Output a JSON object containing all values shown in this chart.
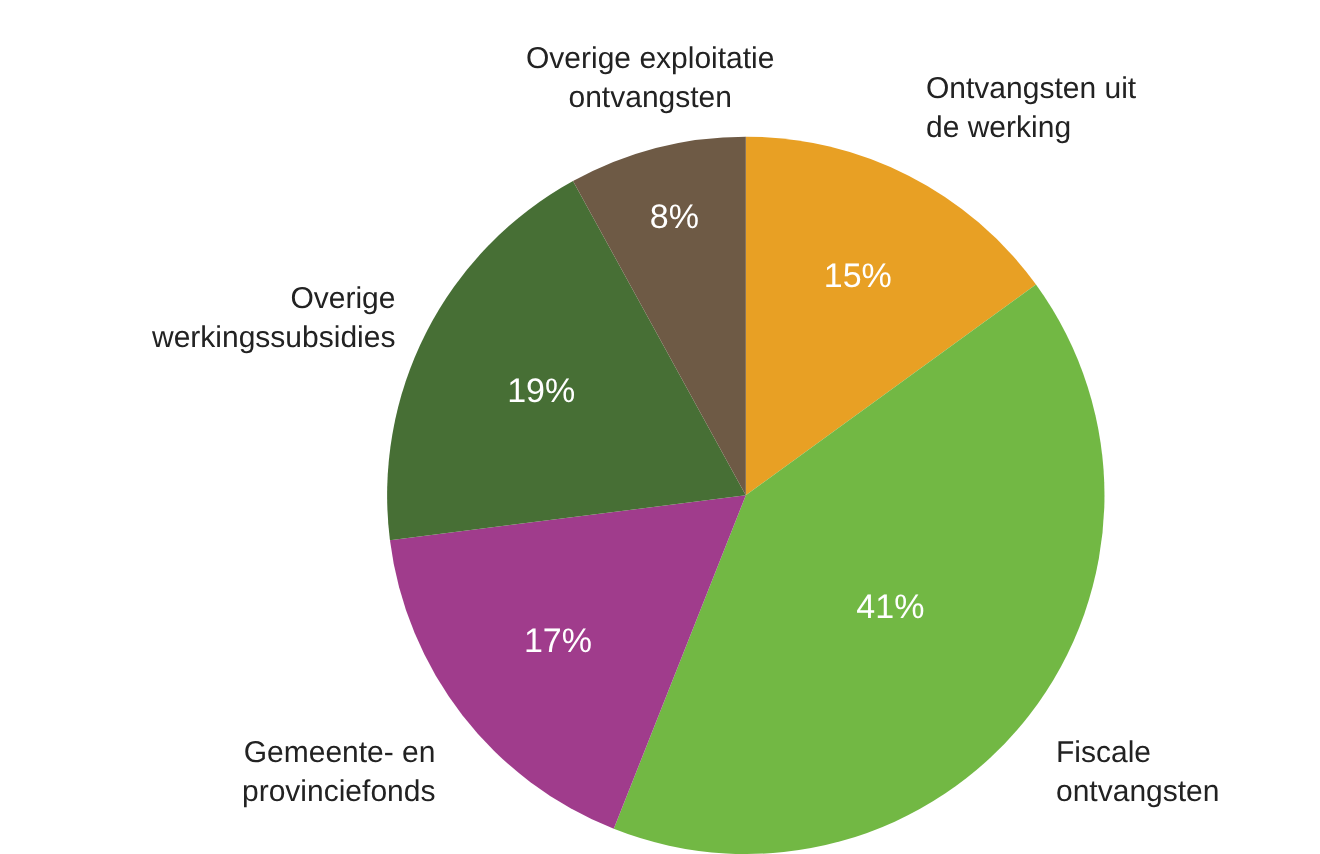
{
  "chart_data": {
    "type": "pie",
    "categories": [
      "Ontvangsten uit\nde werking",
      "Fiscale\nontvangsten",
      "Gemeente- en\nprovinciefonds",
      "Overige\nwerkingssubsidies",
      "Overige exploitatie\nontvangsten"
    ],
    "values": [
      15,
      41,
      17,
      19,
      8
    ],
    "value_labels": [
      "15%",
      "41%",
      "17%",
      "19%",
      "8%"
    ],
    "colors": [
      "#e8a024",
      "#72b844",
      "#a03c8c",
      "#476f35",
      "#6e5a45"
    ],
    "legend": false
  }
}
